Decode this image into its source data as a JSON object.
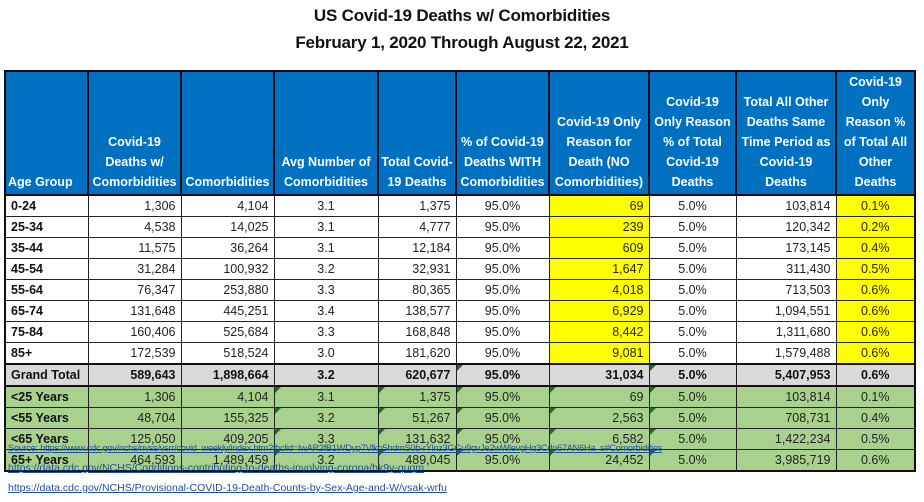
{
  "title": {
    "line1": "US Covid-19 Deaths w/ Comorbidities",
    "line2": "February 1, 2020 Through August 22, 2021"
  },
  "table": {
    "headers": [
      "Age Group",
      "Covid-19 Deaths w/ Comorbidities",
      "Comorbidities",
      "Avg Number of Comorbidities",
      "Total Covid-19 Deaths",
      "% of Covid-19 Deaths WITH Comorbidities",
      "Covid-19 Only Reason for Death (NO Comorbidities)",
      "Covid-19 Only Reason % of Total Covid-19 Deaths",
      "Total All Other Deaths Same Time Period as Covid-19 Deaths",
      "Covid-19 Only Reason % of Total All Other Deaths"
    ],
    "rows": [
      [
        "0-24",
        "1,306",
        "4,104",
        "3.1",
        "1,375",
        "95.0%",
        "69",
        "5.0%",
        "103,814",
        "0.1%"
      ],
      [
        "25-34",
        "4,538",
        "14,025",
        "3.1",
        "4,777",
        "95.0%",
        "239",
        "5.0%",
        "120,342",
        "0.2%"
      ],
      [
        "35-44",
        "11,575",
        "36,264",
        "3.1",
        "12,184",
        "95.0%",
        "609",
        "5.0%",
        "173,145",
        "0.4%"
      ],
      [
        "45-54",
        "31,284",
        "100,932",
        "3.2",
        "32,931",
        "95.0%",
        "1,647",
        "5.0%",
        "311,430",
        "0.5%"
      ],
      [
        "55-64",
        "76,347",
        "253,880",
        "3.3",
        "80,365",
        "95.0%",
        "4,018",
        "5.0%",
        "713,503",
        "0.6%"
      ],
      [
        "65-74",
        "131,648",
        "445,251",
        "3.4",
        "138,577",
        "95.0%",
        "6,929",
        "5.0%",
        "1,094,551",
        "0.6%"
      ],
      [
        "75-84",
        "160,406",
        "525,684",
        "3.3",
        "168,848",
        "95.0%",
        "8,442",
        "5.0%",
        "1,311,680",
        "0.6%"
      ],
      [
        "85+",
        "172,539",
        "518,524",
        "3.0",
        "181,620",
        "95.0%",
        "9,081",
        "5.0%",
        "1,579,488",
        "0.6%"
      ]
    ],
    "total": [
      "Grand Total",
      "589,643",
      "1,898,664",
      "3.2",
      "620,677",
      "95.0%",
      "31,034",
      "5.0%",
      "5,407,953",
      "0.6%"
    ],
    "groups": [
      [
        "<25 Years",
        "1,306",
        "4,104",
        "3.1",
        "1,375",
        "95.0%",
        "69",
        "5.0%",
        "103,814",
        "0.1%"
      ],
      [
        "<55 Years",
        "48,704",
        "155,325",
        "3.2",
        "51,267",
        "95.0%",
        "2,563",
        "5.0%",
        "708,731",
        "0.4%"
      ],
      [
        "<65 Years",
        "125,050",
        "409,205",
        "3.3",
        "131,632",
        "95.0%",
        "6,582",
        "5.0%",
        "1,422,234",
        "0.5%"
      ],
      [
        "65+ Years",
        "464,593",
        "1,489,459",
        "3.2",
        "489,045",
        "95.0%",
        "24,452",
        "5.0%",
        "3,985,719",
        "0.6%"
      ]
    ],
    "colors": {
      "header_bg": "#0070c0",
      "highlight": "#ffff00",
      "total_bg": "#d9d9d9",
      "group_bg": "#a9d18e"
    }
  },
  "links": [
    "Source: https://www.cdc.gov/nchs/nvss/vsrr/covid_weekly/index.htm?fbclid=IwAR2fB1WDyp7Vlko5hdmS0b-rYlnz3GGu9gvJe2wWlevgHg3Cdp67AN6Ha_s#Comorbidities",
    "https://data.cdc.gov/NCHS/Conditions-contributing-to-deaths-involving-corona/hk9y-quqm",
    "https://data.cdc.gov/NCHS/Provisional-COVID-19-Death-Counts-by-Sex-Age-and-W/vsak-wrfu"
  ]
}
